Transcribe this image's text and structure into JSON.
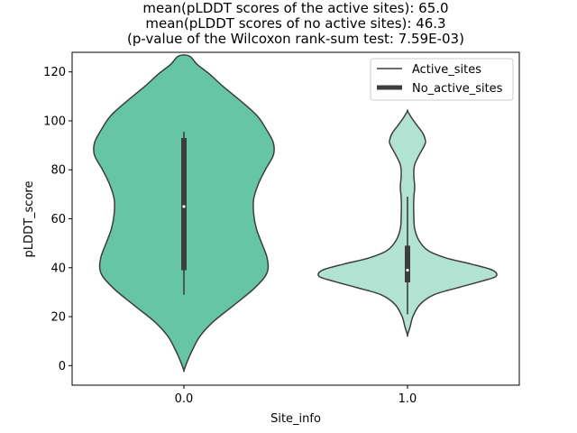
{
  "chart_data": {
    "type": "violin",
    "title_lines": [
      "mean(pLDDT scores of the active sites): 65.0",
      "mean(pLDDT scores of no active sites): 46.3",
      "(p-value of the Wilcoxon rank-sum test: 7.59E-03)"
    ],
    "xlabel": "Site_info",
    "ylabel": "pLDDT_score",
    "categories": [
      "0.0",
      "1.0"
    ],
    "ylim": [
      -8,
      128
    ],
    "yticks": [
      0,
      20,
      40,
      60,
      80,
      100,
      120
    ],
    "ytick_labels": [
      "0",
      "20",
      "40",
      "60",
      "80",
      "100",
      "120"
    ],
    "legend": {
      "position": "upper right",
      "entries": [
        "Active_sites",
        "No_active_sites"
      ]
    },
    "colors": {
      "Active_sites": "#66c5a5",
      "No_active_sites": "#b2e2d2",
      "edge": "#3d3d3d"
    },
    "series": [
      {
        "name": "Active_sites",
        "category": "0.0",
        "y_range": [
          -2,
          126.5
        ],
        "density_profile": [
          [
            -2,
            0.0
          ],
          [
            1,
            0.03
          ],
          [
            6,
            0.09
          ],
          [
            12,
            0.18
          ],
          [
            18,
            0.33
          ],
          [
            25,
            0.57
          ],
          [
            32,
            0.8
          ],
          [
            38,
            0.93
          ],
          [
            44,
            0.93
          ],
          [
            50,
            0.87
          ],
          [
            56,
            0.81
          ],
          [
            62,
            0.78
          ],
          [
            68,
            0.78
          ],
          [
            74,
            0.83
          ],
          [
            80,
            0.91
          ],
          [
            86,
            1.0
          ],
          [
            91,
            1.0
          ],
          [
            96,
            0.93
          ],
          [
            102,
            0.82
          ],
          [
            108,
            0.64
          ],
          [
            114,
            0.44
          ],
          [
            119,
            0.29
          ],
          [
            123,
            0.15
          ],
          [
            126.5,
            0.06
          ]
        ],
        "box": {
          "q1": 39,
          "q3": 93,
          "whisker_low": 29,
          "whisker_high": 95.5,
          "median": 65
        }
      },
      {
        "name": "No_active_sites",
        "category": "1.0",
        "y_range": [
          12.5,
          104
        ],
        "density_profile": [
          [
            12.5,
            0.0
          ],
          [
            16,
            0.03
          ],
          [
            20,
            0.06
          ],
          [
            25,
            0.14
          ],
          [
            29,
            0.3
          ],
          [
            32,
            0.58
          ],
          [
            34.5,
            0.83
          ],
          [
            36.5,
            0.99
          ],
          [
            39,
            0.95
          ],
          [
            41.5,
            0.71
          ],
          [
            44,
            0.43
          ],
          [
            47,
            0.23
          ],
          [
            51,
            0.13
          ],
          [
            56,
            0.08
          ],
          [
            62,
            0.07
          ],
          [
            68,
            0.07
          ],
          [
            73,
            0.08
          ],
          [
            78,
            0.07
          ],
          [
            82,
            0.08
          ],
          [
            86,
            0.13
          ],
          [
            90,
            0.19
          ],
          [
            92,
            0.2
          ],
          [
            95,
            0.17
          ],
          [
            98,
            0.11
          ],
          [
            101,
            0.05
          ],
          [
            104,
            0.0
          ]
        ],
        "box": {
          "q1": 34,
          "q3": 49,
          "whisker_low": 21,
          "whisker_high": 69,
          "median": 39
        }
      }
    ]
  }
}
